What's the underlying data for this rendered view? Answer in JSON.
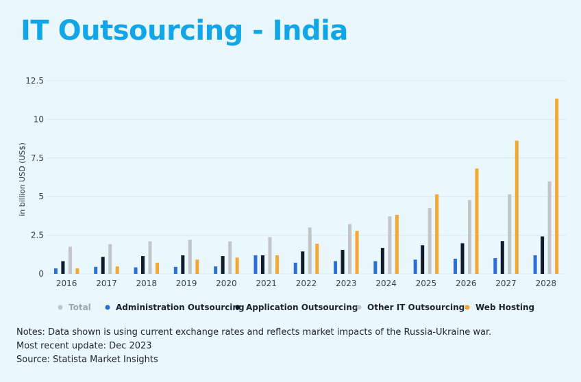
{
  "title": "IT Outsourcing - India",
  "notes": {
    "line1": "Notes: Data shown is using current exchange rates and reflects market impacts of the Russia-Ukraine war.",
    "line2": "Most recent update: Dec 2023",
    "line3": "Source: Statista Market Insights"
  },
  "legend": [
    {
      "label": "Total",
      "color": "#c3c6c9",
      "muted": true
    },
    {
      "label": "Administration Outsourcing",
      "color": "#2b6fd6"
    },
    {
      "label": "Application Outsourcing",
      "color": "#0f1b2a"
    },
    {
      "label": "Other IT Outsourcing",
      "color": "#c3c6c9"
    },
    {
      "label": "Web Hosting",
      "color": "#f5a733"
    }
  ],
  "chart_data": {
    "type": "bar",
    "title": "IT Outsourcing - India",
    "xlabel": "",
    "ylabel": "in billion USD (US$)",
    "ylim": [
      0,
      12.5
    ],
    "yticks": [
      "0",
      "2.5",
      "5",
      "7.5",
      "10",
      "12.5"
    ],
    "grid": true,
    "legend_position": "bottom",
    "categories": [
      "2016",
      "2017",
      "2018",
      "2019",
      "2020",
      "2021",
      "2022",
      "2023",
      "2024",
      "2025",
      "2026",
      "2027",
      "2028"
    ],
    "series": [
      {
        "name": "Administration Outsourcing",
        "color": "#2b6fd6",
        "values": [
          0.35,
          0.45,
          0.42,
          0.45,
          0.48,
          1.2,
          0.72,
          0.82,
          0.82,
          0.92,
          0.98,
          1.02,
          1.2
        ]
      },
      {
        "name": "Application Outsourcing",
        "color": "#0f1b2a",
        "values": [
          0.82,
          1.1,
          1.15,
          1.2,
          1.15,
          1.2,
          1.45,
          1.55,
          1.68,
          1.85,
          1.98,
          2.12,
          2.42
        ]
      },
      {
        "name": "Other IT Outsourcing",
        "color": "#c3c6c9",
        "values": [
          1.75,
          1.92,
          2.1,
          2.2,
          2.1,
          2.38,
          3.0,
          3.22,
          3.72,
          4.25,
          4.78,
          5.15,
          5.98
        ]
      },
      {
        "name": "Web Hosting",
        "color": "#f5a733",
        "values": [
          0.35,
          0.48,
          0.72,
          0.92,
          1.05,
          1.2,
          1.95,
          2.78,
          3.82,
          5.15,
          6.82,
          8.62,
          11.35
        ]
      }
    ]
  }
}
